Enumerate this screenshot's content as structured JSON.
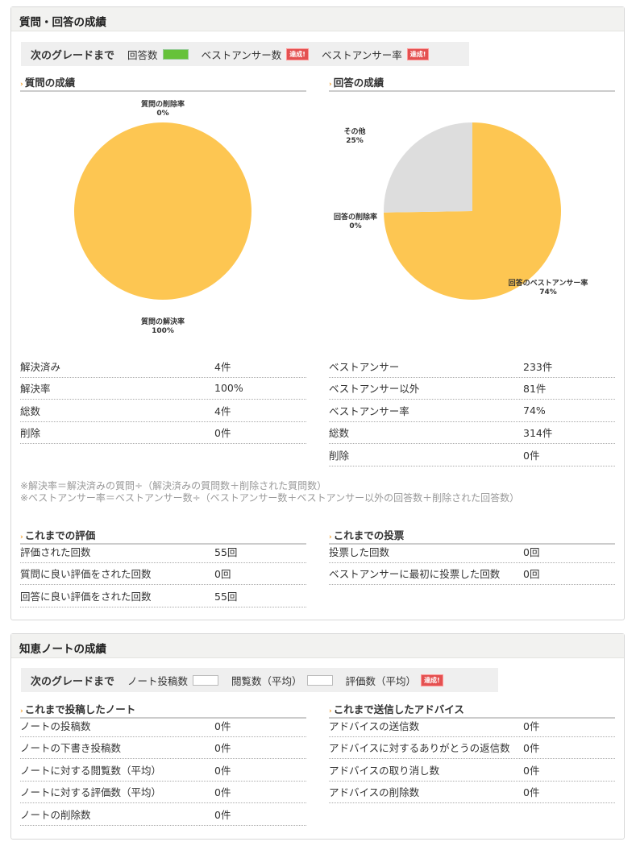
{
  "qa": {
    "title": "質問・回答の成績",
    "grade": {
      "label": "次のグレードまで",
      "items": [
        {
          "name": "回答数",
          "state": "bar-green"
        },
        {
          "name": "ベストアンサー数",
          "state": "達成!"
        },
        {
          "name": "ベストアンサー率",
          "state": "達成!"
        }
      ]
    },
    "question_section": "質問の成績",
    "answer_section": "回答の成績",
    "question_rows": [
      [
        "解決済み",
        "4件"
      ],
      [
        "解決率",
        "100%"
      ],
      [
        "総数",
        "4件"
      ],
      [
        "削除",
        "0件"
      ]
    ],
    "answer_rows": [
      [
        "ベストアンサー",
        "233件"
      ],
      [
        "ベストアンサー以外",
        "81件"
      ],
      [
        "ベストアンサー率",
        "74%"
      ],
      [
        "総数",
        "314件"
      ],
      [
        "削除",
        "0件"
      ]
    ],
    "notes": [
      "※解決率＝解決済みの質問÷（解決済みの質問数＋削除された質問数）",
      "※ベストアンサー率＝ベストアンサー数÷（ベストアンサー数＋ベストアンサー以外の回答数＋削除された回答数）"
    ],
    "eval_section": "これまでの評価",
    "eval_rows": [
      [
        "評価された回数",
        "55回"
      ],
      [
        "質問に良い評価をされた回数",
        "0回"
      ],
      [
        "回答に良い評価をされた回数",
        "55回"
      ]
    ],
    "vote_section": "これまでの投票",
    "vote_rows": [
      [
        "投票した回数",
        "0回"
      ],
      [
        "ベストアンサーに最初に投票した回数",
        "0回"
      ]
    ]
  },
  "chart_data": [
    {
      "type": "pie",
      "slices": [
        {
          "label": "質問の解決率",
          "value": 100,
          "text": "100%",
          "color": "#fdc652"
        },
        {
          "label": "質問の削除率",
          "value": 0,
          "text": "0%",
          "color": "#dddddd"
        }
      ]
    },
    {
      "type": "pie",
      "slices": [
        {
          "label": "回答のベストアンサー率",
          "value": 74,
          "text": "74%",
          "color": "#fdc652"
        },
        {
          "label": "回答の削除率",
          "value": 0,
          "text": "0%",
          "color": "#fdc652"
        },
        {
          "label": "その他",
          "value": 25,
          "text": "25%",
          "color": "#dddddd"
        }
      ]
    }
  ],
  "notes_panel": {
    "title": "知恵ノートの成績",
    "grade": {
      "label": "次のグレードまで",
      "items": [
        {
          "name": "ノート投稿数",
          "state": "bar-empty"
        },
        {
          "name": "閲覧数（平均）",
          "state": "bar-empty"
        },
        {
          "name": "評価数（平均）",
          "state": "達成!"
        }
      ]
    },
    "posted_section": "これまで投稿したノート",
    "posted_rows": [
      [
        "ノートの投稿数",
        "0件"
      ],
      [
        "ノートの下書き投稿数",
        "0件"
      ],
      [
        "ノートに対する閲覧数（平均）",
        "0件"
      ],
      [
        "ノートに対する評価数（平均）",
        "0件"
      ],
      [
        "ノートの削除数",
        "0件"
      ]
    ],
    "advice_section": "これまで送信したアドバイス",
    "advice_rows": [
      [
        "アドバイスの送信数",
        "0件"
      ],
      [
        "アドバイスに対するありがとうの返信数",
        "0件"
      ],
      [
        "アドバイスの取り消し数",
        "0件"
      ],
      [
        "アドバイスの削除数",
        "0件"
      ]
    ]
  }
}
